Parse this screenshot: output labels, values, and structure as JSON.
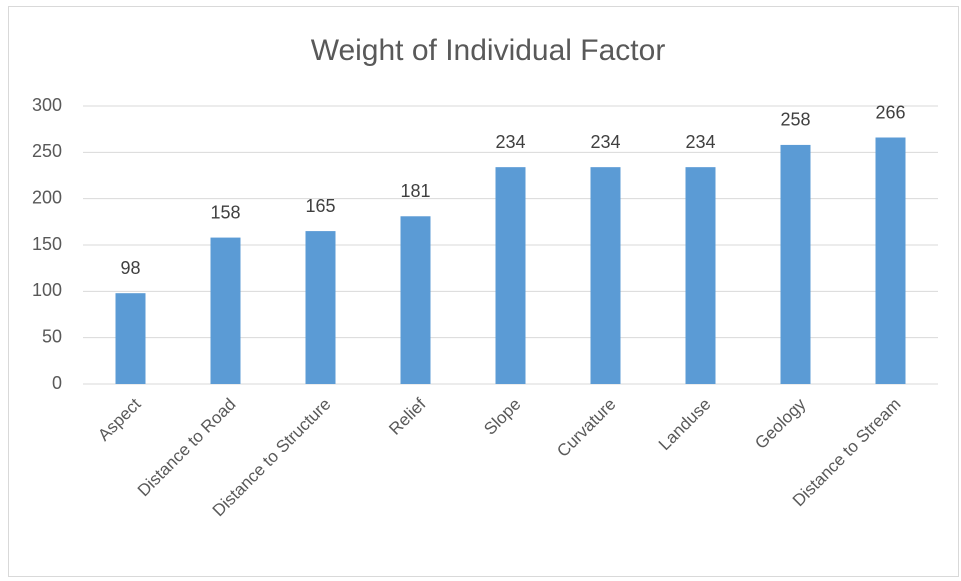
{
  "chart_data": {
    "type": "bar",
    "title": "Weight of Individual Factor",
    "categories": [
      "Aspect",
      "Distance to Road",
      "Distance to Structure",
      "Relief",
      "Slope",
      "Curvature",
      "Landuse",
      "Geology",
      "Distance to Stream"
    ],
    "values": [
      98,
      158,
      165,
      181,
      234,
      234,
      234,
      258,
      266
    ],
    "color": "#5b9bd5",
    "ylim": [
      0,
      300
    ],
    "yticks": [
      0,
      50,
      100,
      150,
      200,
      250,
      300
    ],
    "grid": true
  }
}
